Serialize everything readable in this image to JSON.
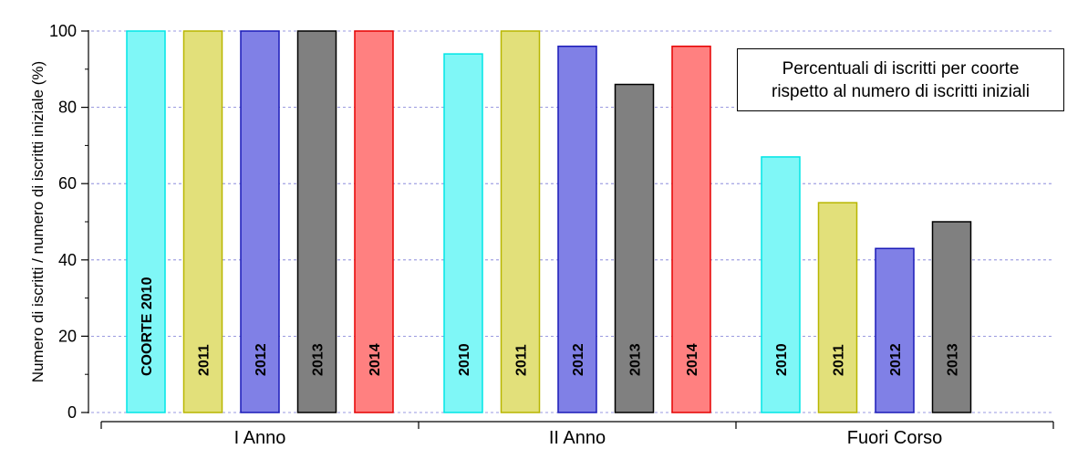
{
  "chart_data": {
    "type": "bar",
    "ylabel": "Numero di iscritti / numero di iscritti iniziale (%)",
    "ylim": [
      0,
      100
    ],
    "yticks": [
      0,
      20,
      40,
      60,
      80,
      100
    ],
    "grid": "horizontal dashed",
    "categories": [
      "I Anno",
      "II Anno",
      "Fuori Corso"
    ],
    "groups": [
      {
        "category": "I Anno",
        "bars": [
          {
            "label": "COORTE 2010",
            "cohort": "2010",
            "value": 100
          },
          {
            "label": "2011",
            "cohort": "2011",
            "value": 100
          },
          {
            "label": "2012",
            "cohort": "2012",
            "value": 100
          },
          {
            "label": "2013",
            "cohort": "2013",
            "value": 100
          },
          {
            "label": "2014",
            "cohort": "2014",
            "value": 100
          }
        ]
      },
      {
        "category": "II Anno",
        "bars": [
          {
            "label": "2010",
            "cohort": "2010",
            "value": 94
          },
          {
            "label": "2011",
            "cohort": "2011",
            "value": 100
          },
          {
            "label": "2012",
            "cohort": "2012",
            "value": 96
          },
          {
            "label": "2013",
            "cohort": "2013",
            "value": 86
          },
          {
            "label": "2014",
            "cohort": "2014",
            "value": 96
          }
        ]
      },
      {
        "category": "Fuori Corso",
        "bars": [
          {
            "label": "2010",
            "cohort": "2010",
            "value": 67
          },
          {
            "label": "2011",
            "cohort": "2011",
            "value": 55
          },
          {
            "label": "2012",
            "cohort": "2012",
            "value": 43
          },
          {
            "label": "2013",
            "cohort": "2013",
            "value": 50
          }
        ]
      }
    ],
    "colors": {
      "2010": {
        "fill": "#7ff7f7",
        "stroke": "#00e5e5"
      },
      "2011": {
        "fill": "#e2e07a",
        "stroke": "#b8b600"
      },
      "2012": {
        "fill": "#8080e6",
        "stroke": "#1a1ab8"
      },
      "2013": {
        "fill": "#808080",
        "stroke": "#000000"
      },
      "2014": {
        "fill": "#ff8080",
        "stroke": "#e60000"
      }
    },
    "annotation": [
      "Percentuali di iscritti per coorte",
      "rispetto al numero di iscritti iniziali"
    ]
  }
}
